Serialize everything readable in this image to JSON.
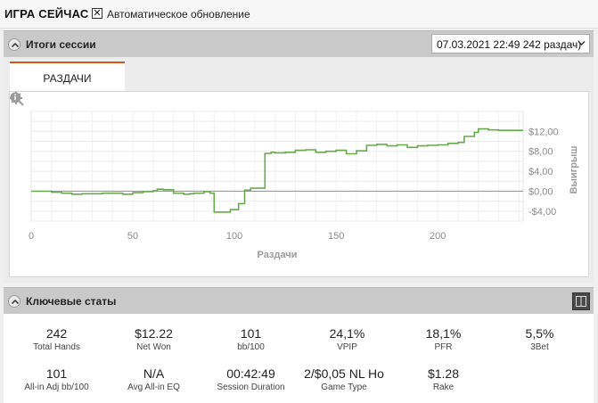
{
  "topbar": {
    "title": "ИГРА СЕЙЧАС",
    "auto_update_checked": "✕",
    "auto_update_label": "Автоматическое обновление"
  },
  "session": {
    "title": "Итоги сессии",
    "selected_session": "07.03.2021 22:49 242 раздач)",
    "tab_label": "РАЗДАЧИ"
  },
  "chart_data": {
    "type": "line",
    "xlabel": "Раздачи",
    "ylabel": "Выигрыш",
    "xlim": [
      0,
      242
    ],
    "ylim": [
      -6,
      16
    ],
    "x_ticks": [
      0,
      50,
      100,
      150,
      200
    ],
    "x_tick_labels": [
      "0",
      "50",
      "100",
      "150",
      "200"
    ],
    "y_ticks": [
      12,
      8,
      4,
      0,
      -4
    ],
    "y_tick_labels": [
      "$12,00",
      "$8,00",
      "$4,00",
      "$0,00",
      "-$4,00"
    ],
    "grid": true,
    "series_color": "#6aa84f",
    "series": [
      {
        "x": [
          0,
          5,
          10,
          15,
          20,
          25,
          30,
          35,
          40,
          45,
          50,
          55,
          60,
          62,
          65,
          70,
          75,
          78,
          80,
          85,
          88,
          90,
          92,
          95,
          98,
          100,
          102,
          105,
          108,
          110,
          112,
          115,
          118,
          120,
          125,
          130,
          135,
          140,
          145,
          150,
          155,
          160,
          165,
          170,
          175,
          180,
          185,
          190,
          195,
          200,
          205,
          210,
          213,
          215,
          218,
          220,
          225,
          230,
          235,
          240,
          242
        ],
        "y": [
          0,
          0,
          -0.2,
          -0.4,
          -0.6,
          -0.5,
          -0.5,
          -0.4,
          -0.4,
          -0.6,
          -0.3,
          -0.1,
          0.1,
          0.4,
          0.3,
          -0.4,
          -0.6,
          -0.5,
          -0.4,
          -0.1,
          -0.4,
          -4.2,
          -4.2,
          -4.2,
          -3.7,
          -3.7,
          -2.5,
          0.2,
          0.6,
          0.6,
          0.6,
          7.6,
          7.8,
          7.7,
          7.8,
          8.2,
          8.3,
          7.8,
          8.0,
          8.2,
          7.5,
          8.1,
          9.2,
          9.4,
          9.1,
          9.3,
          8.8,
          9.1,
          9.2,
          9.3,
          9.6,
          9.8,
          11.0,
          11.0,
          11.8,
          12.5,
          12.3,
          12.2,
          12.2,
          12.2,
          12.2
        ]
      }
    ]
  },
  "stats": {
    "title": "Ключевые статы",
    "row1": [
      {
        "value": "242",
        "label": "Total Hands"
      },
      {
        "value": "$12.22",
        "label": "Net Won"
      },
      {
        "value": "101",
        "label": "bb/100"
      },
      {
        "value": "24,1%",
        "label": "VPIP"
      },
      {
        "value": "18,1%",
        "label": "PFR"
      },
      {
        "value": "5,5%",
        "label": "3Bet"
      }
    ],
    "row2": [
      {
        "value": "101",
        "label": "All-in Adj bb/100"
      },
      {
        "value": "N/A",
        "label": "Avg All-in EQ"
      },
      {
        "value": "00:42:49",
        "label": "Session Duration"
      },
      {
        "value": "2/$0,05 NL Ho",
        "label": "Game Type"
      },
      {
        "value": "$1.28",
        "label": "Rake"
      }
    ]
  },
  "icons": {
    "collapse": "chevron-up-icon",
    "dropdown": "chevron-down-icon",
    "zoom": "magnifier-icon",
    "settings": "gear-icon",
    "info": "info-icon",
    "columns": "columns-icon"
  }
}
